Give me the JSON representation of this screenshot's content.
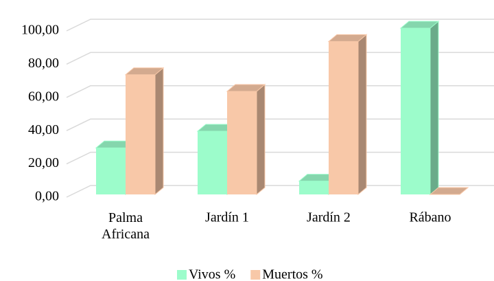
{
  "chart_data": {
    "type": "bar3d",
    "categories": [
      "Palma\nAfricana",
      "Jardín 1",
      "Jardín 2",
      "Rábano"
    ],
    "series": [
      {
        "name": "Vivos %",
        "color": "#9cfccb",
        "values": [
          28,
          38,
          8,
          100
        ]
      },
      {
        "name": "Muertos %",
        "color": "#f8c8a8",
        "values": [
          72,
          62,
          92,
          0
        ]
      }
    ],
    "ylim": [
      0,
      100
    ],
    "yticks": [
      {
        "value": 0,
        "label": "0,00"
      },
      {
        "value": 20,
        "label": "20,00"
      },
      {
        "value": 40,
        "label": "40,00"
      },
      {
        "value": 60,
        "label": "60,00"
      },
      {
        "value": 80,
        "label": "80,00"
      },
      {
        "value": 100,
        "label": "100,00"
      }
    ],
    "grid": true,
    "legend": "bottom"
  }
}
